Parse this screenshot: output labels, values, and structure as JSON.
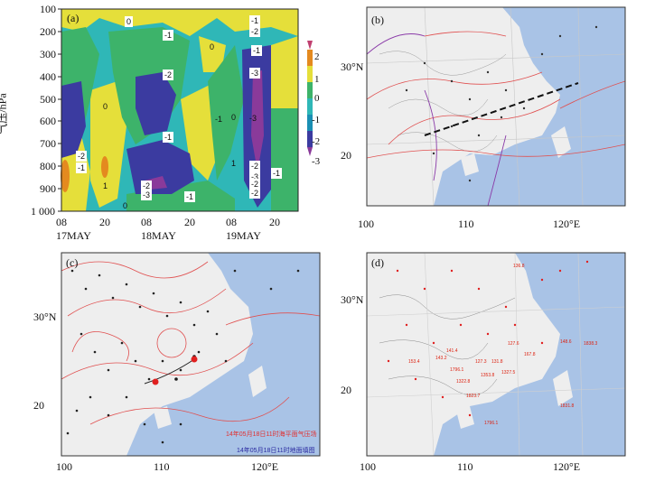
{
  "colors": {
    "c_neg3": "#3b3ba0",
    "c_neg2": "#2d2d8a",
    "c_neg1": "#1ab3b3",
    "c_0": "#2fb7b7",
    "c_pos1": "#e5df3a",
    "c_pos2": "#e48a1f",
    "ocean": "#a9c3e6",
    "land": "#eeeeee",
    "contour_red": "#e05050",
    "contour_purple": "#8a3aa8"
  },
  "panel_a": {
    "label": "(a)",
    "ylabel": "气压/hPa",
    "yticks": [
      "100",
      "200",
      "300",
      "400",
      "500",
      "600",
      "700",
      "800",
      "900",
      "1 000"
    ],
    "xticks": [
      "08",
      "20",
      "08",
      "20",
      "08",
      "20"
    ],
    "dates": [
      "17MAY",
      "18MAY",
      "19MAY"
    ],
    "colorbar": [
      "2",
      "1",
      "0",
      "-1",
      "-2",
      "-3"
    ],
    "contour_labels": [
      "0",
      "-1",
      "0",
      "-1",
      "-2",
      "-1",
      "-2",
      "-3",
      "-1",
      "-2",
      "0",
      "-1",
      "-2",
      "-3",
      "-1",
      "-2",
      "-3",
      "-2",
      "-1",
      "-3",
      "-2",
      "-1",
      "0",
      "1",
      "0",
      "1"
    ]
  },
  "panel_b": {
    "label": "(b)",
    "lat_labels": [
      "30°N",
      "20"
    ],
    "lon_labels": [
      "100",
      "110",
      "120°E"
    ]
  },
  "panel_c": {
    "label": "(c)",
    "lat_labels": [
      "30°N",
      "20"
    ],
    "lon_labels": [
      "100",
      "110",
      "120°E"
    ],
    "caption1": "14年05月18日11时海平面气压场",
    "caption2": "14年05月18日11时地面填图"
  },
  "panel_d": {
    "label": "(d)",
    "lat_labels": [
      "30°N",
      "20"
    ],
    "lon_labels": [
      "100",
      "110",
      "120°E"
    ],
    "values": [
      "136.8",
      "127.6",
      "148.6",
      "1838.3",
      "141.4",
      "143.2",
      "153.4",
      "127.3",
      "131.8",
      "167.8",
      "1796.1",
      "1322.8",
      "1353.8",
      "1327.5",
      "1823.7",
      "1796.1",
      "1831.8"
    ]
  }
}
